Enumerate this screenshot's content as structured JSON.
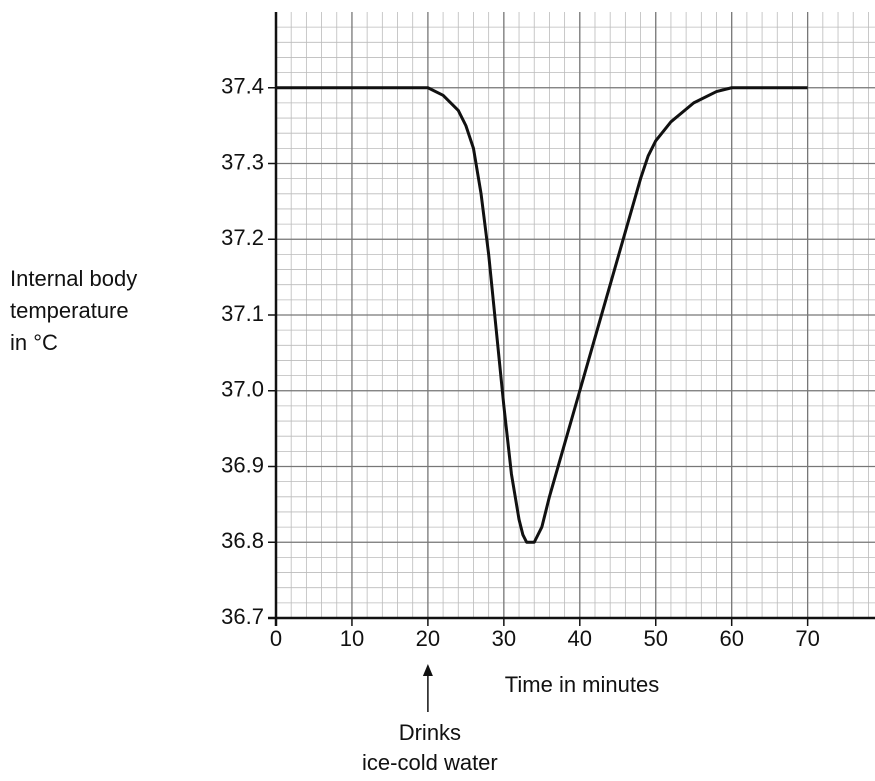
{
  "chart_data": {
    "type": "line",
    "xlabel": "Time in minutes",
    "ylabel": [
      "Internal body",
      "temperature",
      "in °C"
    ],
    "annotation": {
      "text": [
        "Drinks",
        "ice-cold water"
      ],
      "x": 20
    },
    "x": [
      0,
      20,
      22,
      24,
      25,
      26,
      27,
      28,
      29,
      30,
      31,
      32,
      32.5,
      33,
      34,
      35,
      36,
      38,
      40,
      42,
      44,
      46,
      48,
      49,
      50,
      52,
      55,
      58,
      60,
      70
    ],
    "series": [
      {
        "name": "Internal body temperature",
        "color": "#111111",
        "values": [
          37.4,
          37.4,
          37.39,
          37.37,
          37.35,
          37.32,
          37.26,
          37.18,
          37.08,
          36.98,
          36.89,
          36.83,
          36.81,
          36.8,
          36.8,
          36.82,
          36.86,
          36.93,
          37.0,
          37.07,
          37.14,
          37.21,
          37.28,
          37.31,
          37.33,
          37.355,
          37.38,
          37.395,
          37.4,
          37.4
        ]
      }
    ],
    "xlim": [
      0,
      79
    ],
    "xticks": [
      0,
      10,
      20,
      30,
      40,
      50,
      60,
      70
    ],
    "ylim": [
      36.7,
      37.5
    ],
    "yticks": [
      36.7,
      36.8,
      36.9,
      {
        "value": 37,
        "label": "37.0"
      },
      37.1,
      37.2,
      37.3,
      37.4
    ],
    "grid": true
  }
}
